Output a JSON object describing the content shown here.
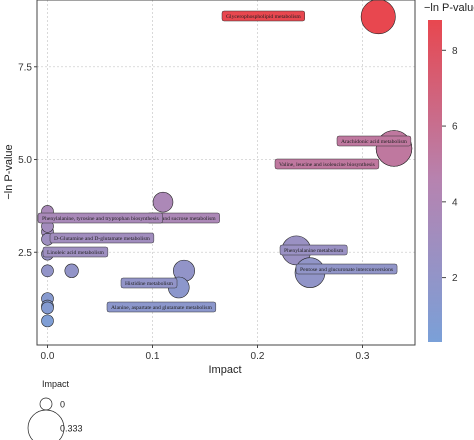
{
  "chart_data": {
    "type": "scatter",
    "xlabel": "Impact",
    "ylabel": "−ln P-value",
    "xlim": [
      -0.01,
      0.35
    ],
    "ylim": [
      0,
      9.3
    ],
    "xticks": [
      0.0,
      0.1,
      0.2,
      0.3
    ],
    "xtick_labels": [
      "0.0",
      "0.1",
      "0.2",
      "0.3"
    ],
    "yticks": [
      2.5,
      5.0,
      7.5
    ],
    "ytick_labels": [
      "2.5",
      "5.0",
      "7.5"
    ],
    "grid": true,
    "points": [
      {
        "label": "Glycerophospholipid metabolism",
        "x": 0.315,
        "y": 8.85
      },
      {
        "label": "Arachidonic acid metabolism",
        "x": 0.33,
        "y": 5.3
      },
      {
        "label": "Valine, leucine and isoleucine biosynthesis",
        "x": 0.33,
        "y": 5.3
      },
      {
        "label": "...ch and sucrose metabolism",
        "x": 0.11,
        "y": 3.85
      },
      {
        "label": "Phenylalanine, tyrosine and tryptophan biosynthesis",
        "x": 0.0,
        "y": 3.6
      },
      {
        "label": "D-Glutamine and D-glutamate metabolism",
        "x": 0.0,
        "y": 3.05
      },
      {
        "label": "Linoleic acid metabolism",
        "x": 0.0,
        "y": 2.85
      },
      {
        "label": "Phenylalanine metabolism",
        "x": 0.237,
        "y": 2.55
      },
      {
        "label": "Pentose and glucuronate interconversions",
        "x": 0.25,
        "y": 1.95
      },
      {
        "label": "Histidine metabolism",
        "x": 0.13,
        "y": 2.0
      },
      {
        "label": "Alanine, aspartate and glutamate metabolism",
        "x": 0.125,
        "y": 1.55
      },
      {
        "label": "",
        "x": 0.0,
        "y": 3.2
      },
      {
        "label": "",
        "x": 0.0,
        "y": 2.45
      },
      {
        "label": "",
        "x": 0.0,
        "y": 2.0
      },
      {
        "label": "",
        "x": 0.023,
        "y": 2.0
      },
      {
        "label": "",
        "x": 0.0,
        "y": 1.25
      },
      {
        "label": "",
        "x": 0.0,
        "y": 1.05
      },
      {
        "label": "",
        "x": 0.0,
        "y": 1.0
      },
      {
        "label": "",
        "x": 0.0,
        "y": 0.65
      }
    ],
    "impact_values": [
      0.31,
      0.33,
      0.33,
      0.11,
      0.0,
      0.0,
      0.0,
      0.237,
      0.25,
      0.13,
      0.125,
      0.0,
      0.0,
      0.0,
      0.023,
      0.0,
      0.0,
      0.0,
      0.0
    ],
    "colorbar": {
      "title": "−ln P-value",
      "range": [
        0.3,
        8.8
      ],
      "ticks": [
        2,
        4,
        6,
        8
      ],
      "tick_labels": [
        "2",
        "4",
        "6",
        "8"
      ],
      "low_color": "#7aa0d8",
      "mid_color": "#b683b0",
      "high_color": "#e8474f"
    },
    "size_legend": {
      "title": "Impact",
      "entries": [
        {
          "value": 0,
          "label": "0"
        },
        {
          "value": 0.333,
          "label": "0.333"
        }
      ]
    }
  }
}
